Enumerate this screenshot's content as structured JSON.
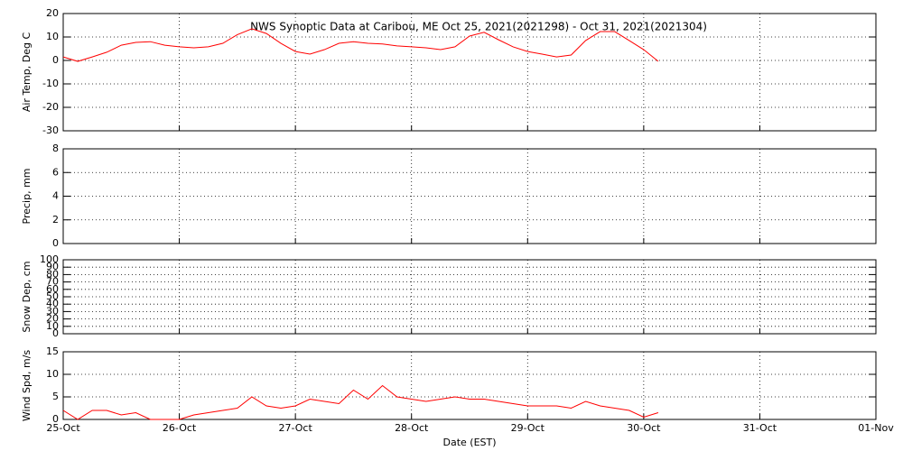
{
  "chart_data": [
    {
      "type": "line",
      "title": "NWS Synoptic Data at Caribou, ME   Oct 25, 2021(2021298) - Oct 31, 2021(2021304)",
      "y_label": "Air Temp, Deg C",
      "xlim": [
        0,
        7
      ],
      "xticks": [
        0,
        1,
        2,
        3,
        4,
        5,
        6,
        7
      ],
      "ylim": [
        -30,
        20
      ],
      "yticks": [
        -30,
        -20,
        -10,
        0,
        10,
        20
      ],
      "grid": true,
      "x": [
        0,
        0.125,
        0.25,
        0.375,
        0.5,
        0.625,
        0.75,
        0.875,
        1,
        1.125,
        1.25,
        1.375,
        1.5,
        1.625,
        1.75,
        1.875,
        2,
        2.125,
        2.25,
        2.375,
        2.5,
        2.625,
        2.75,
        2.875,
        3,
        3.125,
        3.25,
        3.375,
        3.5,
        3.625,
        3.75,
        3.875,
        4,
        4.125,
        4.25,
        4.375,
        4.5,
        4.625,
        4.75,
        4.875,
        5,
        5.125
      ],
      "series": [
        {
          "name": "Air Temp",
          "color": "#ff0000",
          "values": [
            1.5,
            -0.4,
            1.5,
            3.5,
            6.5,
            7.7,
            8,
            6.5,
            5.8,
            5.4,
            5.8,
            7.3,
            11,
            13.5,
            11.5,
            7.3,
            3.8,
            2.7,
            4.6,
            7.3,
            8,
            7.3,
            7,
            6.2,
            5.8,
            5.4,
            4.6,
            5.8,
            10.4,
            12,
            8.8,
            5.8,
            3.8,
            2.7,
            1.5,
            2.3,
            8.5,
            12.3,
            12.3,
            8.5,
            4.6,
            -0.4
          ]
        }
      ]
    },
    {
      "type": "line",
      "y_label": "Precip, mm",
      "xlim": [
        0,
        7
      ],
      "xticks": [
        0,
        1,
        2,
        3,
        4,
        5,
        6,
        7
      ],
      "ylim": [
        0,
        8
      ],
      "yticks": [
        0,
        2,
        4,
        6,
        8
      ],
      "grid": true
    },
    {
      "type": "line",
      "y_label": "Snow Dep, cm",
      "xlim": [
        0,
        7
      ],
      "xticks": [
        0,
        1,
        2,
        3,
        4,
        5,
        6,
        7
      ],
      "ylim": [
        0,
        100
      ],
      "yticks": [
        0,
        10,
        20,
        30,
        40,
        50,
        60,
        70,
        80,
        90,
        100
      ],
      "grid": true
    },
    {
      "type": "line",
      "y_label": "Wind Spd, m/s",
      "x_label": "Date (EST)",
      "xlim": [
        0,
        7
      ],
      "xticks": [
        {
          "value": 0,
          "label": "25-Oct"
        },
        {
          "value": 1,
          "label": "26-Oct"
        },
        {
          "value": 2,
          "label": "27-Oct"
        },
        {
          "value": 3,
          "label": "28-Oct"
        },
        {
          "value": 4,
          "label": "29-Oct"
        },
        {
          "value": 5,
          "label": "30-Oct"
        },
        {
          "value": 6,
          "label": "31-Oct"
        },
        {
          "value": 7,
          "label": "01-Nov"
        }
      ],
      "ylim": [
        0,
        15
      ],
      "yticks": [
        0,
        5,
        10,
        15
      ],
      "grid": true,
      "x": [
        0,
        0.125,
        0.25,
        0.375,
        0.5,
        0.625,
        0.75,
        0.875,
        1,
        1.125,
        1.25,
        1.375,
        1.5,
        1.625,
        1.75,
        1.875,
        2,
        2.125,
        2.25,
        2.375,
        2.5,
        2.625,
        2.75,
        2.875,
        3,
        3.125,
        3.25,
        3.375,
        3.5,
        3.625,
        3.75,
        3.875,
        4,
        4.125,
        4.25,
        4.375,
        4.5,
        4.625,
        4.75,
        4.875,
        5,
        5.125
      ],
      "series": [
        {
          "name": "Wind Spd",
          "color": "#ff0000",
          "values": [
            2,
            0,
            2,
            2,
            1,
            1.5,
            0,
            0,
            0,
            1,
            1.5,
            2,
            2.5,
            5,
            3,
            2.5,
            3,
            4.5,
            4,
            3.5,
            6.5,
            4.5,
            7.5,
            5,
            4.5,
            4,
            4.5,
            5,
            4.5,
            4.5,
            4,
            3.5,
            3,
            3,
            3,
            2.5,
            4,
            3,
            2.5,
            2,
            0.5,
            1.5
          ]
        }
      ]
    }
  ]
}
